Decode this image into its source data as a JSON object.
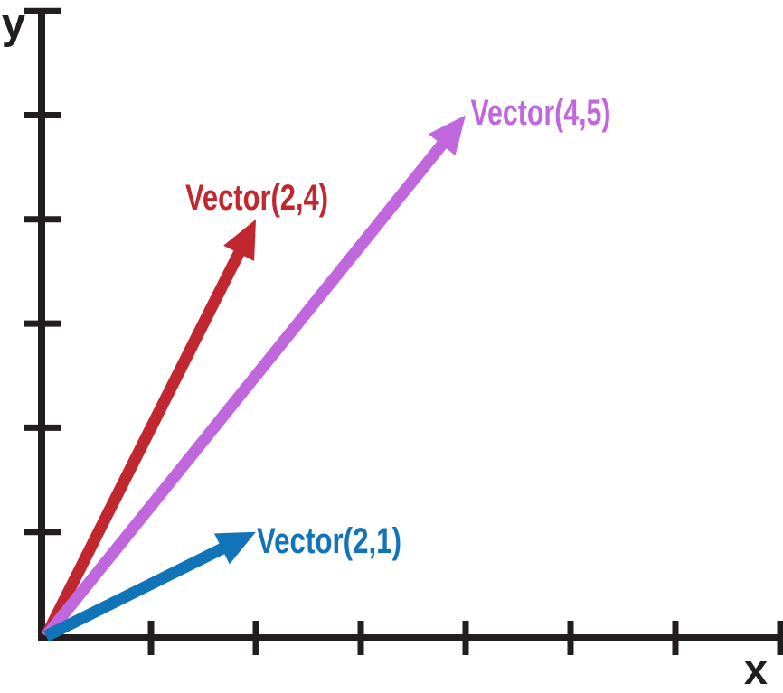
{
  "page": {
    "background_color": "#ffffff",
    "axis_color": "#221e1f"
  },
  "chart_data": {
    "type": "vector",
    "title": "",
    "xlabel": "x",
    "ylabel": "y",
    "xlim": [
      0,
      7
    ],
    "ylim": [
      0,
      6
    ],
    "x_ticks": [
      1,
      2,
      3,
      4,
      5,
      6,
      7
    ],
    "y_ticks": [
      1,
      2,
      3,
      4,
      5,
      6
    ],
    "grid": false,
    "legend": "none",
    "vectors": [
      {
        "label": "Vector(2,4)",
        "from": [
          0,
          0
        ],
        "to": [
          2,
          4
        ],
        "color": "#c1272e"
      },
      {
        "label": "Vector(4,5)",
        "from": [
          0,
          0
        ],
        "to": [
          4,
          5
        ],
        "color": "#c167de"
      },
      {
        "label": "Vector(2,1)",
        "from": [
          0,
          0
        ],
        "to": [
          2,
          1
        ],
        "color": "#1173b8"
      }
    ]
  }
}
